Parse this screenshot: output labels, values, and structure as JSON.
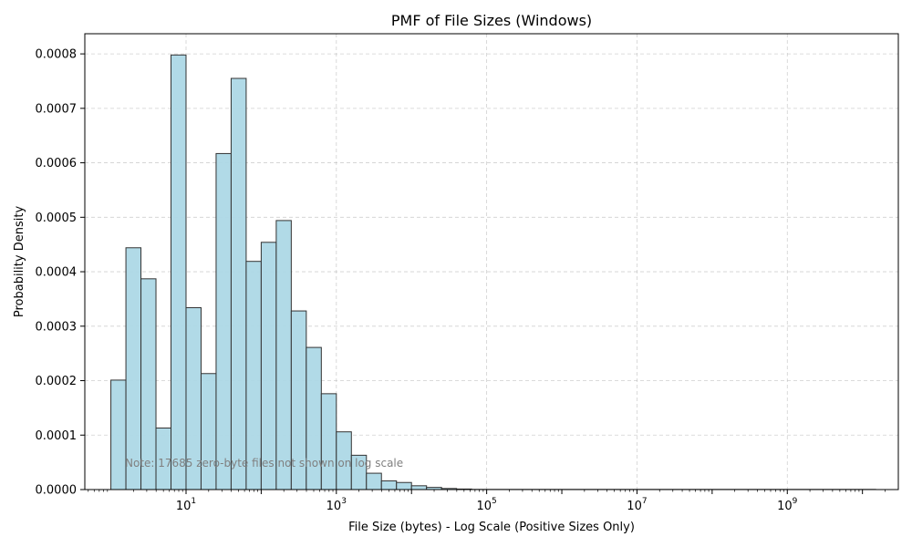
{
  "chart_data": {
    "type": "bar",
    "title": "PMF of File Sizes (Windows)",
    "xlabel": "File Size (bytes) - Log Scale (Positive Sizes Only)",
    "ylabel": "Probability Density",
    "x_scale": "log",
    "xlim": [
      0.45,
      30000000000
    ],
    "ylim": [
      0,
      0.000837
    ],
    "x_ticks": [
      {
        "value": 10,
        "base": "10",
        "exp": "1"
      },
      {
        "value": 1000,
        "base": "10",
        "exp": "3"
      },
      {
        "value": 100000,
        "base": "10",
        "exp": "5"
      },
      {
        "value": 10000000,
        "base": "10",
        "exp": "7"
      },
      {
        "value": 1000000000,
        "base": "10",
        "exp": "9"
      }
    ],
    "y_ticks": [
      "0.0000",
      "0.0001",
      "0.0002",
      "0.0003",
      "0.0004",
      "0.0005",
      "0.0006",
      "0.0007",
      "0.0008"
    ],
    "y_tick_values": [
      0,
      0.0001,
      0.0002,
      0.0003,
      0.0004,
      0.0005,
      0.0006,
      0.0007,
      0.0008
    ],
    "grid": true,
    "bar_color": "#add8e6",
    "edge_color": "#333333",
    "bins": [
      {
        "x0": 1.0,
        "x1": 1.585,
        "value": 0.000201
      },
      {
        "x0": 1.585,
        "x1": 2.512,
        "value": 0.000444
      },
      {
        "x0": 2.512,
        "x1": 3.981,
        "value": 0.000387
      },
      {
        "x0": 3.981,
        "x1": 6.31,
        "value": 0.000113
      },
      {
        "x0": 6.31,
        "x1": 10.0,
        "value": 0.000798
      },
      {
        "x0": 10.0,
        "x1": 15.85,
        "value": 0.000334
      },
      {
        "x0": 15.85,
        "x1": 25.12,
        "value": 0.000213
      },
      {
        "x0": 25.12,
        "x1": 39.81,
        "value": 0.000617
      },
      {
        "x0": 39.81,
        "x1": 63.1,
        "value": 0.000755
      },
      {
        "x0": 63.1,
        "x1": 100.0,
        "value": 0.000419
      },
      {
        "x0": 100.0,
        "x1": 158.5,
        "value": 0.000454
      },
      {
        "x0": 158.5,
        "x1": 251.2,
        "value": 0.000494
      },
      {
        "x0": 251.2,
        "x1": 398.1,
        "value": 0.000328
      },
      {
        "x0": 398.1,
        "x1": 631.0,
        "value": 0.000261
      },
      {
        "x0": 631.0,
        "x1": 1000.0,
        "value": 0.000176
      },
      {
        "x0": 1000.0,
        "x1": 1585.0,
        "value": 0.000106
      },
      {
        "x0": 1585.0,
        "x1": 2512.0,
        "value": 6.3e-05
      },
      {
        "x0": 2512.0,
        "x1": 3981.0,
        "value": 3e-05
      },
      {
        "x0": 3981.0,
        "x1": 6310.0,
        "value": 1.6e-05
      },
      {
        "x0": 6310.0,
        "x1": 10000.0,
        "value": 1.3e-05
      },
      {
        "x0": 10000.0,
        "x1": 15850.0,
        "value": 7e-06
      },
      {
        "x0": 15850.0,
        "x1": 25120.0,
        "value": 4e-06
      },
      {
        "x0": 25120.0,
        "x1": 39810.0,
        "value": 2e-06
      },
      {
        "x0": 39810.0,
        "x1": 63100.0,
        "value": 1e-06
      },
      {
        "x0": 63100.0,
        "x1": 15000000000,
        "value": 3e-07
      }
    ],
    "annotation": "Note: 17685 zero-byte files not shown on log scale"
  }
}
